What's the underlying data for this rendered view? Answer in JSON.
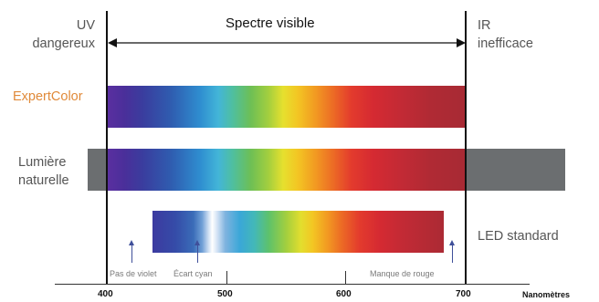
{
  "labels": {
    "uv": [
      "UV",
      "dangereux"
    ],
    "visible": "Spectre visible",
    "ir": [
      "IR",
      "inefficace"
    ],
    "expertcolor": "ExpertColor",
    "natural": [
      "Lumière",
      "naturelle"
    ],
    "led": "LED standard"
  },
  "annotations": {
    "violet": "Pas de violet",
    "cyan": "Écart cyan",
    "red": "Manque de rouge"
  },
  "axis": {
    "ticks": [
      "400",
      "500",
      "600",
      "700"
    ],
    "unit": "Nanomètres"
  },
  "colors": {
    "expertcolor": "#e08a3a",
    "text": "#555555",
    "natural_extension": "#6b6e70"
  }
}
